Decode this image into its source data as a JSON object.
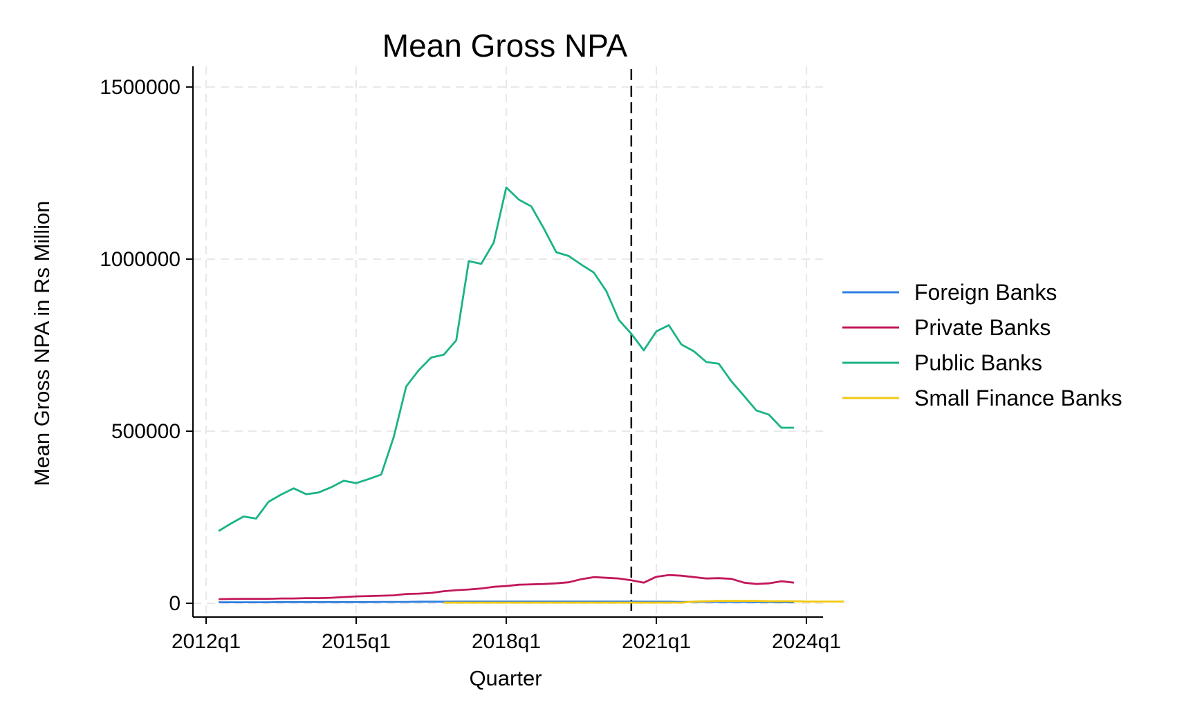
{
  "chart_data": {
    "type": "line",
    "title": "Mean Gross NPA",
    "xlabel": "Quarter",
    "ylabel": "Mean Gross NPA in Rs Million",
    "x_ticks": [
      "2012q1",
      "2015q1",
      "2018q1",
      "2021q1",
      "2024q1"
    ],
    "x_tick_quarters": [
      0,
      12,
      24,
      36,
      48
    ],
    "y_ticks": [
      0,
      500000,
      1000000,
      1500000
    ],
    "y_tick_labels": [
      "0",
      "500000",
      "1000000",
      "1500000"
    ],
    "xlim": [
      "2012q1",
      "2024q1"
    ],
    "ylim": [
      -40000,
      1560000
    ],
    "grid": true,
    "legend_position": "right",
    "reference_line": {
      "x": "2020q3",
      "x_quarter": 34,
      "style": "dashed",
      "color": "#000000"
    },
    "series": [
      {
        "name": "Foreign Banks",
        "color": "#2f7fe0",
        "start": "2012q2",
        "values": [
          3000,
          3000,
          3000,
          3000,
          3000,
          3500,
          3500,
          3500,
          3500,
          3500,
          3500,
          3500,
          3500,
          4000,
          4000,
          4000,
          4500,
          4500,
          4500,
          5000,
          5000,
          5000,
          5000,
          5000,
          5000,
          5000,
          5000,
          5000,
          5000,
          4800,
          4800,
          4800,
          4800,
          4800,
          4500,
          4500,
          4500,
          4000,
          4000,
          4000,
          4000,
          4000,
          4000,
          3500,
          3500,
          3000,
          3000
        ]
      },
      {
        "name": "Private Banks",
        "color": "#c2185b",
        "start": "2012q2",
        "values": [
          12000,
          12500,
          13000,
          13000,
          13000,
          14000,
          14000,
          15000,
          15000,
          16000,
          18000,
          20000,
          21000,
          22000,
          23000,
          27000,
          28000,
          30000,
          35000,
          38000,
          40000,
          43000,
          48000,
          50000,
          54000,
          55000,
          56000,
          58000,
          61000,
          70000,
          76000,
          74000,
          72000,
          67000,
          60000,
          77000,
          82000,
          80000,
          76000,
          72000,
          73000,
          71000,
          60000,
          56000,
          58000,
          64000,
          60000
        ]
      },
      {
        "name": "Public Banks",
        "color": "#1ab387",
        "start": "2012q2",
        "values": [
          210000,
          232000,
          252000,
          246000,
          295000,
          316000,
          334000,
          317000,
          322000,
          337000,
          356000,
          349000,
          361000,
          374000,
          483000,
          630000,
          677000,
          714000,
          722000,
          764000,
          994000,
          986000,
          1048000,
          1208000,
          1173000,
          1153000,
          1089000,
          1020000,
          1009000,
          984000,
          961000,
          907000,
          823000,
          783000,
          735000,
          790000,
          808000,
          752000,
          732000,
          701000,
          696000,
          645000,
          603000,
          560000,
          548000,
          510000,
          510000
        ]
      },
      {
        "name": "Small Finance Banks",
        "color": "#f2c80f",
        "start": "2016q4",
        "values": [
          2000,
          2000,
          2000,
          2000,
          2000,
          2000,
          2000,
          2000,
          2000,
          2000,
          2000,
          2000,
          2000,
          2000,
          2000,
          2000,
          2000,
          2000,
          2000,
          2000,
          5000,
          6000,
          7000,
          7000,
          7000,
          7000,
          6000,
          6000,
          6000,
          5000,
          5000,
          5000,
          5000
        ]
      }
    ]
  }
}
